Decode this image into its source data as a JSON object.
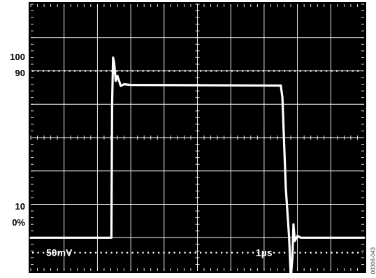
{
  "figure_id": "00306-043",
  "colors": {
    "screen": "#000000",
    "grid": "#ffffff",
    "trace": "#ffffff",
    "outline": "#000000"
  },
  "chart_data": {
    "type": "line",
    "title": "",
    "xlabel": "",
    "ylabel": "",
    "grid": true,
    "divisions": {
      "x": 10,
      "y": 8
    },
    "percent_markers": [
      "100",
      "90",
      "10",
      "0%"
    ],
    "dotted_reference_levels_percent": [
      100,
      0
    ],
    "scale_labels": {
      "vertical": "50mV",
      "horizontal": "1µs"
    },
    "xlim": [
      0,
      10
    ],
    "ylim": [
      -1,
      7
    ],
    "series": [
      {
        "values_note": "",
        "x": [
          0,
          2.42,
          2.44,
          2.47,
          2.5,
          2.55,
          2.6,
          2.7,
          2.8,
          3.0,
          5.0,
          7.5,
          7.55,
          7.65,
          7.75,
          7.8,
          7.85,
          7.88,
          7.92,
          8.0,
          8.1,
          10
        ],
        "y": [
          0.0,
          0.0,
          4.0,
          5.4,
          5.25,
          4.7,
          4.85,
          4.55,
          4.6,
          4.58,
          4.57,
          4.56,
          4.2,
          1.5,
          0.0,
          -1.2,
          -0.6,
          0.4,
          -0.1,
          0.05,
          0.0,
          0.0
        ]
      }
    ]
  }
}
